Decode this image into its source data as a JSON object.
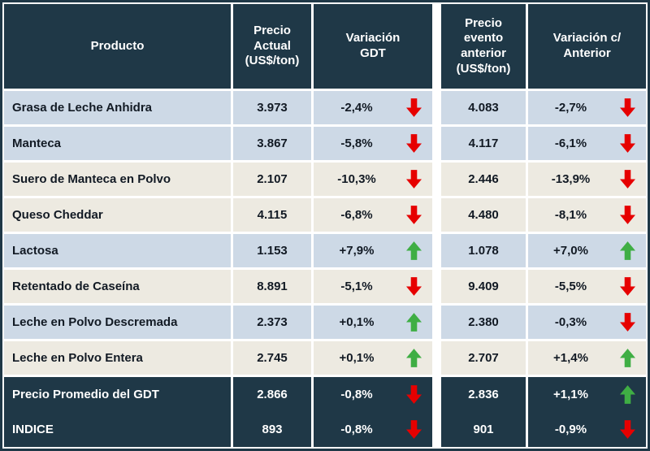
{
  "colors": {
    "header_bg": "#1F3847",
    "row_blue": "#CDD9E6",
    "row_cream": "#EDEAE1",
    "arrow_up": "#3FAE44",
    "arrow_down": "#E60000",
    "text_dark": "#121A24"
  },
  "chart_data": {
    "type": "table",
    "columns": [
      "Producto",
      "Precio Actual (US$/ton)",
      "Variación GDT",
      "Precio evento anterior (US$/ton)",
      "Variación c/ Anterior"
    ],
    "rows": [
      {
        "producto": "Grasa de Leche Anhidra",
        "precio_actual": "3.973",
        "variacion_gdt": "-2,4%",
        "variacion_gdt_arrow": "down",
        "precio_anterior": "4.083",
        "variacion_anterior": "-2,7%",
        "variacion_anterior_arrow": "down",
        "shade": "blue"
      },
      {
        "producto": "Manteca",
        "precio_actual": "3.867",
        "variacion_gdt": "-5,8%",
        "variacion_gdt_arrow": "down",
        "precio_anterior": "4.117",
        "variacion_anterior": "-6,1%",
        "variacion_anterior_arrow": "down",
        "shade": "blue"
      },
      {
        "producto": "Suero de Manteca en Polvo",
        "precio_actual": "2.107",
        "variacion_gdt": "-10,3%",
        "variacion_gdt_arrow": "down",
        "precio_anterior": "2.446",
        "variacion_anterior": "-13,9%",
        "variacion_anterior_arrow": "down",
        "shade": "cream"
      },
      {
        "producto": "Queso Cheddar",
        "precio_actual": "4.115",
        "variacion_gdt": "-6,8%",
        "variacion_gdt_arrow": "down",
        "precio_anterior": "4.480",
        "variacion_anterior": "-8,1%",
        "variacion_anterior_arrow": "down",
        "shade": "cream"
      },
      {
        "producto": "Lactosa",
        "precio_actual": "1.153",
        "variacion_gdt": "+7,9%",
        "variacion_gdt_arrow": "up",
        "precio_anterior": "1.078",
        "variacion_anterior": "+7,0%",
        "variacion_anterior_arrow": "up",
        "shade": "blue"
      },
      {
        "producto": "Retentado de Caseína",
        "precio_actual": "8.891",
        "variacion_gdt": "-5,1%",
        "variacion_gdt_arrow": "down",
        "precio_anterior": "9.409",
        "variacion_anterior": "-5,5%",
        "variacion_anterior_arrow": "down",
        "shade": "cream"
      },
      {
        "producto": "Leche en Polvo Descremada",
        "precio_actual": "2.373",
        "variacion_gdt": "+0,1%",
        "variacion_gdt_arrow": "up",
        "precio_anterior": "2.380",
        "variacion_anterior": "-0,3%",
        "variacion_anterior_arrow": "down",
        "shade": "blue"
      },
      {
        "producto": "Leche en Polvo Entera",
        "precio_actual": "2.745",
        "variacion_gdt": "+0,1%",
        "variacion_gdt_arrow": "up",
        "precio_anterior": "2.707",
        "variacion_anterior": "+1,4%",
        "variacion_anterior_arrow": "up",
        "shade": "cream"
      }
    ],
    "footer_rows": [
      {
        "producto": "Precio Promedio del GDT",
        "precio_actual": "2.866",
        "variacion_gdt": "-0,8%",
        "variacion_gdt_arrow": "down",
        "precio_anterior": "2.836",
        "variacion_anterior": "+1,1%",
        "variacion_anterior_arrow": "up"
      },
      {
        "producto": "INDICE",
        "precio_actual": "893",
        "variacion_gdt": "-0,8%",
        "variacion_gdt_arrow": "down",
        "precio_anterior": "901",
        "variacion_anterior": "-0,9%",
        "variacion_anterior_arrow": "down"
      }
    ]
  }
}
